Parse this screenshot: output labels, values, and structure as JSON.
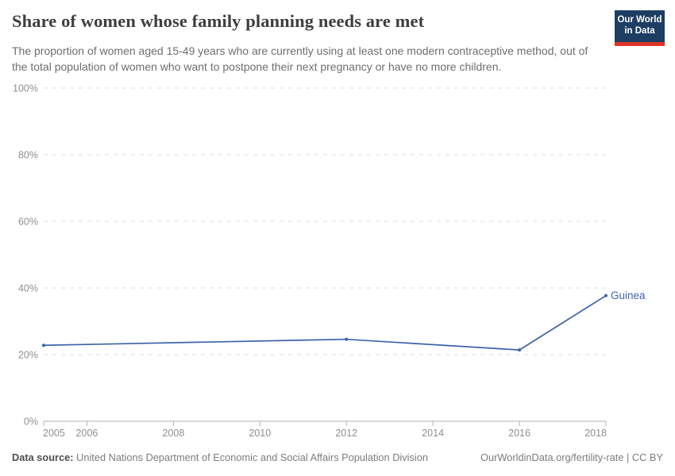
{
  "header": {
    "title": "Share of women whose family planning needs are met",
    "subtitle": "The proportion of women aged 15-49 years who are currently using at least one modern contraceptive method, out of the total population of women who want to postpone their next pregnancy or have no more children.",
    "logo": {
      "line1": "Our World",
      "line2": "in Data",
      "bg_color": "#1d3d63",
      "accent_color": "#dc3426"
    }
  },
  "chart_data": {
    "type": "line",
    "title": "Share of women whose family planning needs are met",
    "xlabel": "",
    "ylabel": "",
    "xlim": [
      2005,
      2018
    ],
    "ylim": [
      0,
      100
    ],
    "grid": "horizontal-dashed",
    "x_ticks": [
      2005,
      2006,
      2008,
      2010,
      2012,
      2014,
      2016,
      2018
    ],
    "y_ticks": [
      0,
      20,
      40,
      60,
      80,
      100
    ],
    "y_tick_suffix": "%",
    "series": [
      {
        "name": "Guinea",
        "color": "#3d63a8",
        "points": [
          {
            "x": 2005,
            "y": 22.8
          },
          {
            "x": 2012,
            "y": 24.6
          },
          {
            "x": 2016,
            "y": 21.4
          },
          {
            "x": 2018,
            "y": 37.7
          }
        ]
      }
    ],
    "colors": {
      "gridline": "#dcdcdc",
      "axis": "#b0b0b0",
      "tick_label": "#8f8f8f"
    }
  },
  "footer": {
    "source_label": "Data source:",
    "source_text": " United Nations Department of Economic and Social Affairs Population Division",
    "credit": "OurWorldinData.org/fertility-rate | CC BY"
  }
}
